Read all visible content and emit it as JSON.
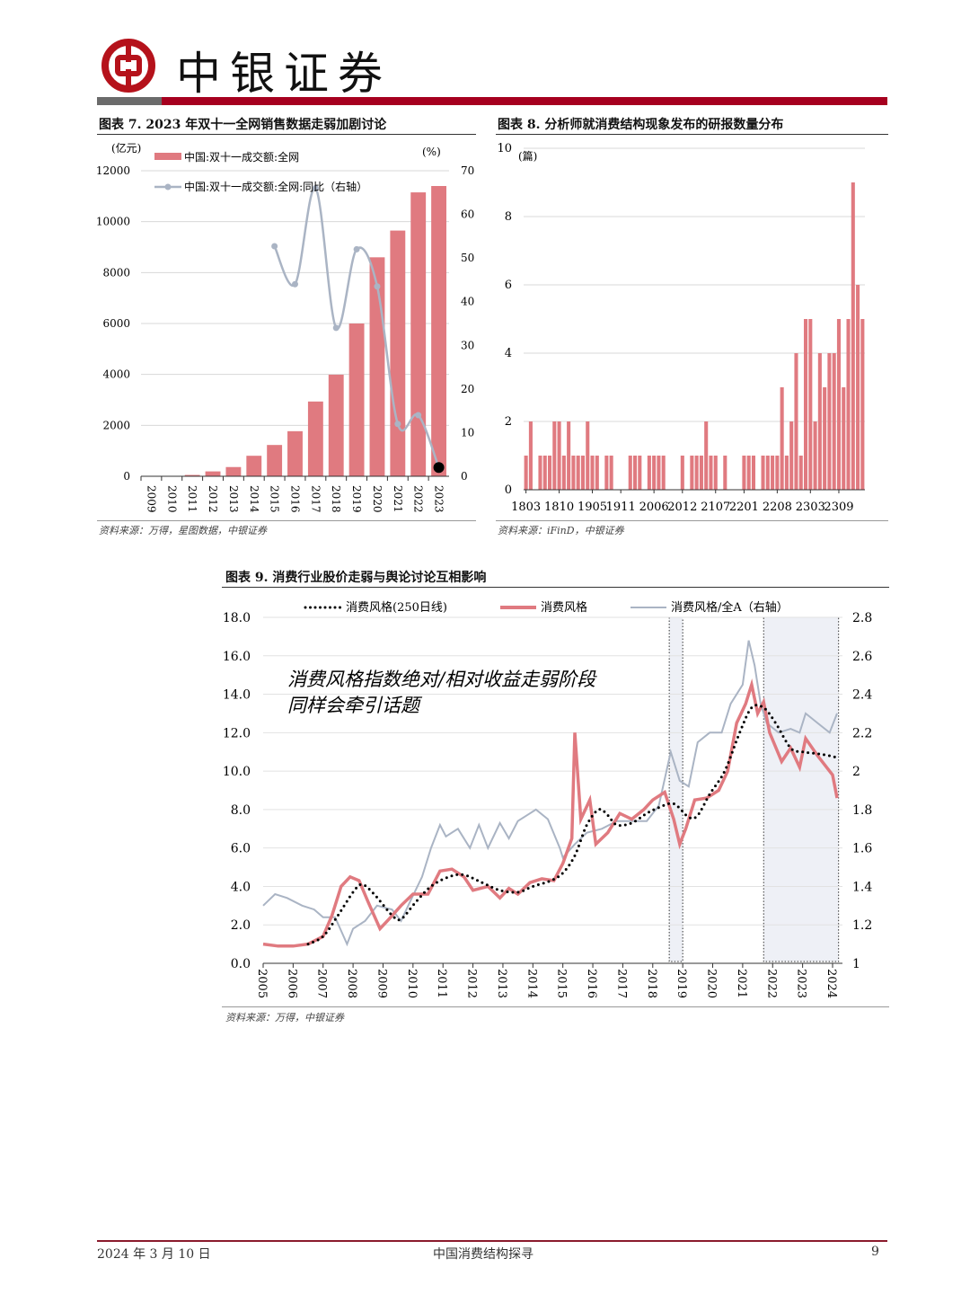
{
  "header": {
    "brand": "中银证券",
    "logo": "bank-of-china-logo",
    "brand_color": "#a6001f"
  },
  "charts": {
    "c7": {
      "title": "图表 7. 2023 年双十一全网销售数据走弱加剧讨论",
      "source": "资料来源：万得，星图数据，中银证券"
    },
    "c8": {
      "title": "图表 8.  分析师就消费结构现象发布的研报数量分布",
      "source": "资料来源：iFinD，中银证券"
    },
    "c9": {
      "title": "图表 9.  消费行业股价走弱与舆论讨论互相影响",
      "source": "资料来源：万得，中银证券",
      "annotation_line1": "消费风格指数绝对/相对收益走弱阶段",
      "annotation_line2": "同样会牵引话题"
    }
  },
  "chart_data": [
    {
      "type": "bar",
      "categories": [
        "2009",
        "2010",
        "2011",
        "2012",
        "2013",
        "2014",
        "2015",
        "2016",
        "2017",
        "2018",
        "2019",
        "2020",
        "2021",
        "2022",
        "2023"
      ],
      "series": [
        {
          "name": "中国:双十一成交额:全网",
          "type": "bar",
          "axis": "left",
          "color": "#e07a80",
          "values": [
            0.5,
            9.4,
            52,
            191,
            362,
            805,
            1229,
            1770,
            2936,
            3990,
            6000,
            8600,
            9650,
            11150,
            11400
          ]
        },
        {
          "name": "中国:双十一成交额:全网:同比（右轴）",
          "type": "line",
          "axis": "right",
          "color": "#aab4c4",
          "values": [
            null,
            null,
            null,
            null,
            null,
            null,
            52.7,
            44,
            66,
            34,
            52,
            43.5,
            12,
            14,
            2
          ]
        }
      ],
      "left_unit": "(亿元)",
      "right_unit": "(%)",
      "ylim": [
        0,
        12000
      ],
      "yticks": [
        "0",
        "2000",
        "4000",
        "6000",
        "8000",
        "10000",
        "12000"
      ],
      "y2lim": [
        0,
        70
      ],
      "y2ticks": [
        "0",
        "10",
        "20",
        "30",
        "40",
        "50",
        "60",
        "70"
      ],
      "highlight_point": {
        "category": "2023",
        "color": "#000000"
      },
      "grid": true,
      "legend": "top-left"
    },
    {
      "type": "bar",
      "unit": "(篇)",
      "categories": [
        "1803",
        "1804",
        "1805",
        "1806",
        "1807",
        "1808",
        "1809",
        "1810",
        "1811",
        "1812",
        "1901",
        "1902",
        "1903",
        "1904",
        "1905",
        "1906",
        "1907",
        "1908",
        "1909",
        "1910",
        "1911",
        "1912",
        "2001",
        "2002",
        "2003",
        "2004",
        "2005",
        "2006",
        "2007",
        "2008",
        "2009",
        "2010",
        "2011",
        "2012",
        "2101",
        "2102",
        "2103",
        "2104",
        "2105",
        "2106",
        "2107",
        "2108",
        "2109",
        "2110",
        "2111",
        "2112",
        "2201",
        "2202",
        "2203",
        "2204",
        "2205",
        "2206",
        "2207",
        "2208",
        "2209",
        "2210",
        "2211",
        "2212",
        "2301",
        "2302",
        "2303",
        "2304",
        "2305",
        "2306",
        "2307",
        "2308",
        "2309",
        "2310",
        "2311",
        "2312",
        "2401",
        "2402"
      ],
      "tick_labels": [
        "1803",
        "1810",
        "1905",
        "1911",
        "2006",
        "2012",
        "2107",
        "2201",
        "2208",
        "2303",
        "2309"
      ],
      "values": [
        1,
        2,
        0,
        1,
        1,
        1,
        2,
        2,
        1,
        2,
        1,
        1,
        1,
        2,
        1,
        1,
        0,
        1,
        1,
        0,
        0,
        0,
        1,
        1,
        1,
        0,
        1,
        1,
        1,
        1,
        0,
        0,
        0,
        1,
        0,
        1,
        1,
        1,
        2,
        1,
        1,
        0,
        1,
        0,
        0,
        0,
        1,
        1,
        1,
        0,
        1,
        1,
        1,
        1,
        3,
        1,
        2,
        4,
        1,
        5,
        5,
        2,
        4,
        3,
        4,
        4,
        5,
        3,
        5,
        9,
        6,
        5
      ],
      "color": "#e07a80",
      "ylim": [
        0,
        10
      ],
      "yticks": [
        "0",
        "2",
        "4",
        "6",
        "8",
        "10"
      ],
      "grid": true
    },
    {
      "type": "line",
      "xlim": [
        2005,
        2024.3
      ],
      "xticks": [
        "2005",
        "2006",
        "2007",
        "2008",
        "2009",
        "2010",
        "2011",
        "2012",
        "2013",
        "2014",
        "2015",
        "2016",
        "2017",
        "2018",
        "2019",
        "2020",
        "2021",
        "2022",
        "2023",
        "2024"
      ],
      "ylim": [
        0,
        18
      ],
      "yticks": [
        "0.0",
        "2.0",
        "4.0",
        "6.0",
        "8.0",
        "10.0",
        "12.0",
        "14.0",
        "16.0",
        "18.0"
      ],
      "y2lim": [
        1,
        2.8
      ],
      "y2ticks": [
        "1",
        "1.2",
        "1.4",
        "1.6",
        "1.8",
        "2",
        "2.2",
        "2.4",
        "2.6",
        "2.8"
      ],
      "legend": "top",
      "highlight_periods": [
        [
          2018.55,
          2019.0
        ],
        [
          2021.7,
          2024.2
        ]
      ],
      "series": [
        {
          "name": "消费风格(250日线)",
          "axis": "left",
          "style": "dotted",
          "color": "#000000",
          "x": [
            2006.5,
            2007,
            2007.5,
            2008,
            2008.3,
            2008.7,
            2009.3,
            2009.6,
            2010.1,
            2010.6,
            2011.2,
            2011.7,
            2012.3,
            2012.9,
            2013.5,
            2014.0,
            2014.6,
            2015.0,
            2015.4,
            2015.8,
            2016.2,
            2016.5,
            2016.8,
            2017.3,
            2017.8,
            2018.2,
            2018.7,
            2019.2,
            2019.5,
            2019.9,
            2020.4,
            2020.9,
            2021.3,
            2021.7,
            2022.1,
            2022.6,
            2023.0,
            2023.5,
            2023.9,
            2024.15
          ],
          "y": [
            1.0,
            1.4,
            2.5,
            3.7,
            4.1,
            3.6,
            2.5,
            2.3,
            3.2,
            4.0,
            4.5,
            4.6,
            4.2,
            3.8,
            3.7,
            4.0,
            4.3,
            4.7,
            5.6,
            7.2,
            8.0,
            7.7,
            7.2,
            7.3,
            7.8,
            8.1,
            8.3,
            7.6,
            7.7,
            8.8,
            10.0,
            12.0,
            13.3,
            13.3,
            12.5,
            11.2,
            11.0,
            10.9,
            10.8,
            10.7
          ]
        },
        {
          "name": "消费风格",
          "axis": "left",
          "style": "solid",
          "color": "#e07a80",
          "x": [
            2005,
            2005.5,
            2006,
            2006.5,
            2007,
            2007.3,
            2007.6,
            2007.9,
            2008.2,
            2008.5,
            2008.9,
            2009.2,
            2009.6,
            2010,
            2010.5,
            2010.9,
            2011.3,
            2011.7,
            2012,
            2012.5,
            2012.9,
            2013.2,
            2013.5,
            2013.9,
            2014.3,
            2014.7,
            2015.0,
            2015.3,
            2015.4,
            2015.6,
            2015.9,
            2016.1,
            2016.5,
            2016.9,
            2017.3,
            2017.7,
            2018.0,
            2018.4,
            2018.7,
            2018.9,
            2019.1,
            2019.4,
            2019.8,
            2020.2,
            2020.5,
            2020.8,
            2021.1,
            2021.3,
            2021.5,
            2021.7,
            2021.9,
            2022.3,
            2022.6,
            2022.9,
            2023.1,
            2023.5,
            2023.8,
            2024.0,
            2024.15
          ],
          "y": [
            1.0,
            0.9,
            0.9,
            1.0,
            1.4,
            2.5,
            4.0,
            4.5,
            4.3,
            3.2,
            1.8,
            2.3,
            3.0,
            3.6,
            3.6,
            4.8,
            4.9,
            4.5,
            3.8,
            4.0,
            3.4,
            3.9,
            3.6,
            4.2,
            4.4,
            4.3,
            5.2,
            6.5,
            12.0,
            7.5,
            8.5,
            6.2,
            6.8,
            7.8,
            7.5,
            8.0,
            8.5,
            8.9,
            7.5,
            6.2,
            7.0,
            8.5,
            8.6,
            9.0,
            10.0,
            12.5,
            13.5,
            14.5,
            13.0,
            13.6,
            12.0,
            10.5,
            11.2,
            10.2,
            11.7,
            10.8,
            10.2,
            9.8,
            8.6
          ]
        },
        {
          "name": "消费风格/全A（右轴）",
          "axis": "right",
          "style": "solid",
          "color": "#aab4c4",
          "x": [
            2005,
            2005.4,
            2005.8,
            2006.3,
            2006.7,
            2007.0,
            2007.4,
            2007.8,
            2008.0,
            2008.4,
            2008.8,
            2009.3,
            2009.6,
            2009.9,
            2010.3,
            2010.6,
            2010.9,
            2011.1,
            2011.5,
            2011.9,
            2012.2,
            2012.5,
            2012.9,
            2013.2,
            2013.5,
            2013.9,
            2014.1,
            2014.5,
            2014.9,
            2015.0,
            2015.4,
            2015.8,
            2016.3,
            2016.8,
            2017.3,
            2017.8,
            2018.2,
            2018.6,
            2018.9,
            2019.2,
            2019.5,
            2019.9,
            2020.3,
            2020.6,
            2021.0,
            2021.2,
            2021.4,
            2021.6,
            2021.8,
            2022.2,
            2022.6,
            2022.9,
            2023.1,
            2023.5,
            2023.9,
            2024.15
          ],
          "y": [
            1.3,
            1.36,
            1.34,
            1.3,
            1.28,
            1.24,
            1.24,
            1.1,
            1.18,
            1.22,
            1.3,
            1.28,
            1.22,
            1.32,
            1.45,
            1.6,
            1.72,
            1.66,
            1.7,
            1.6,
            1.72,
            1.6,
            1.73,
            1.65,
            1.74,
            1.78,
            1.8,
            1.75,
            1.6,
            1.55,
            1.62,
            1.68,
            1.7,
            1.74,
            1.74,
            1.74,
            1.82,
            2.1,
            1.95,
            1.92,
            2.15,
            2.2,
            2.2,
            2.35,
            2.45,
            2.68,
            2.55,
            2.35,
            2.25,
            2.2,
            2.22,
            2.2,
            2.3,
            2.25,
            2.2,
            2.3
          ]
        }
      ]
    }
  ],
  "footer": {
    "date": "2024 年 3 月 10 日",
    "doc_title": "中国消费结构探寻",
    "page": "9"
  }
}
